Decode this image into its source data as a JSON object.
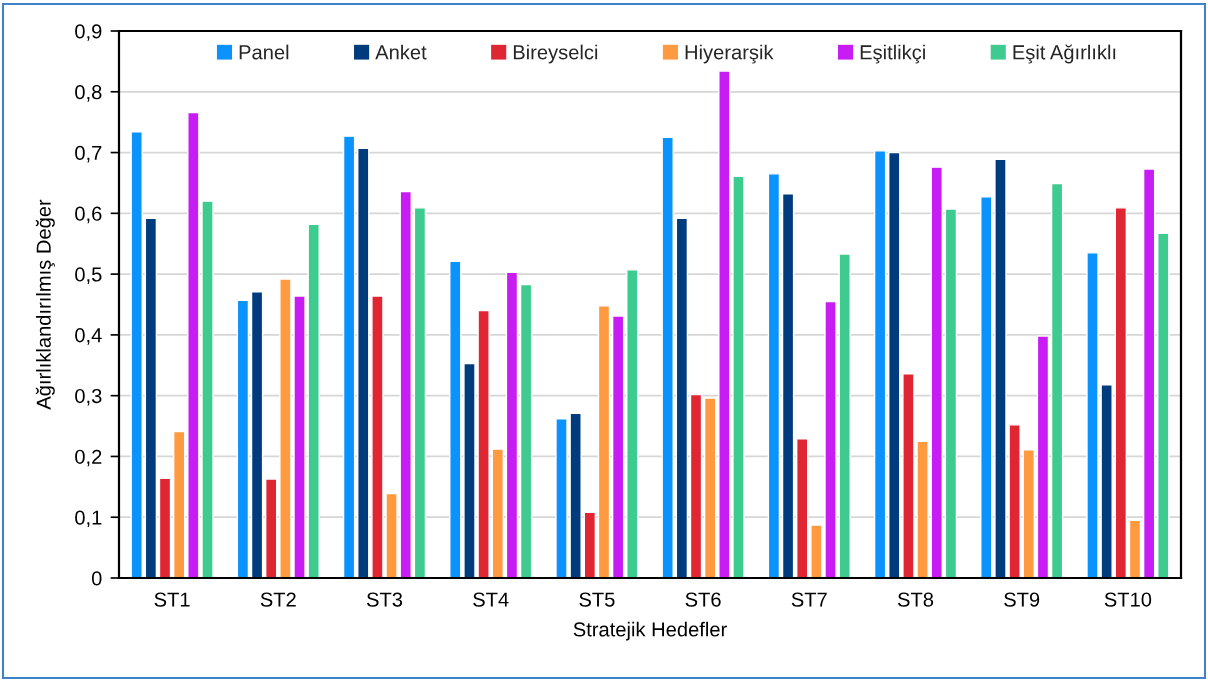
{
  "chart_data": {
    "type": "bar",
    "xlabel": "Stratejik Hedefler",
    "ylabel": "Ağırlıklandırılmış Değer",
    "categories": [
      "ST1",
      "ST2",
      "ST3",
      "ST4",
      "ST5",
      "ST6",
      "ST7",
      "ST8",
      "ST9",
      "ST10"
    ],
    "series": [
      {
        "name": "Panel",
        "color": "#0a93fc",
        "values": [
          0.734,
          0.457,
          0.727,
          0.521,
          0.262,
          0.725,
          0.665,
          0.703,
          0.627,
          0.535
        ]
      },
      {
        "name": "Anket",
        "color": "#003c7d",
        "values": [
          0.592,
          0.471,
          0.707,
          0.353,
          0.271,
          0.592,
          0.632,
          0.7,
          0.689,
          0.318
        ]
      },
      {
        "name": "Bireyselci",
        "color": "#e02533",
        "values": [
          0.164,
          0.163,
          0.464,
          0.44,
          0.108,
          0.302,
          0.229,
          0.336,
          0.252,
          0.609
        ]
      },
      {
        "name": "Hiyerarşik",
        "color": "#ff9a40",
        "values": [
          0.241,
          0.492,
          0.139,
          0.212,
          0.448,
          0.296,
          0.087,
          0.225,
          0.211,
          0.095
        ]
      },
      {
        "name": "Eşitlikçi",
        "color": "#c81cf4",
        "values": [
          0.766,
          0.464,
          0.636,
          0.503,
          0.431,
          0.834,
          0.455,
          0.676,
          0.398,
          0.673
        ]
      },
      {
        "name": "Eşit Ağırlıklı",
        "color": "#3ecb8f",
        "values": [
          0.62,
          0.582,
          0.609,
          0.483,
          0.507,
          0.661,
          0.533,
          0.607,
          0.649,
          0.567
        ]
      }
    ],
    "ylim": [
      0,
      0.9
    ],
    "yticks": [
      0,
      {
        "value": 0.1,
        "label": "0,1"
      },
      {
        "value": 0.2,
        "label": "0,2"
      },
      {
        "value": 0.3,
        "label": "0,3"
      },
      {
        "value": 0.4,
        "label": "0,4"
      },
      {
        "value": 0.5,
        "label": "0,5"
      },
      {
        "value": 0.6,
        "label": "0,6"
      },
      {
        "value": 0.7,
        "label": "0,7"
      },
      {
        "value": 0.8,
        "label": "0,8"
      },
      {
        "value": 0.9,
        "label": "0,9"
      }
    ],
    "grid": "y",
    "legend": "top"
  }
}
